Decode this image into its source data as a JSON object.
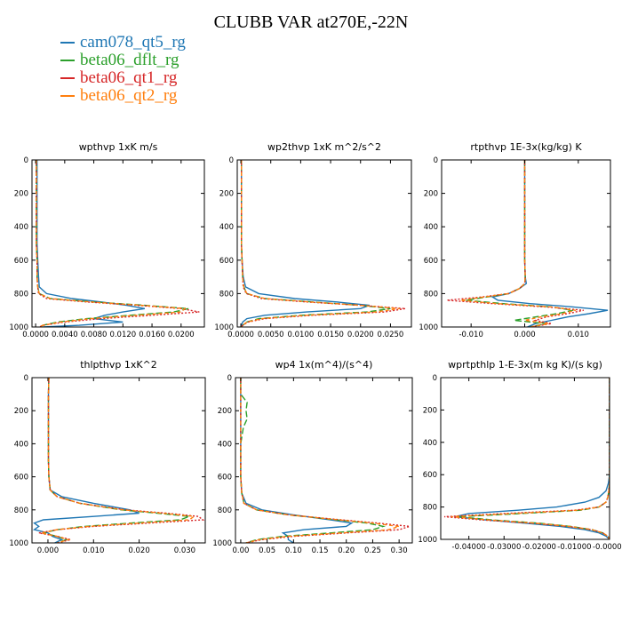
{
  "title": "CLUBB VAR at270E,-22N",
  "colors": {
    "cam078_qt5_rg": "#1f77b4",
    "beta06_dflt_rg": "#2ca02c",
    "beta06_qt1_rg": "#d62728",
    "beta06_qt2_rg": "#ff7f0e"
  },
  "legend": [
    {
      "name": "cam078_qt5_rg",
      "color": "#1f77b4",
      "dash": "solid"
    },
    {
      "name": "beta06_dflt_rg",
      "color": "#2ca02c",
      "dash": "long-dash"
    },
    {
      "name": "beta06_qt1_rg",
      "color": "#d62728",
      "dash": "dotted"
    },
    {
      "name": "beta06_qt2_rg",
      "color": "#ff7f0e",
      "dash": "short-dash"
    }
  ],
  "chart_data": [
    {
      "type": "line",
      "title": "wpthvp   1xK m/s",
      "xlim": [
        -0.0005,
        0.0232
      ],
      "ylim": [
        1000,
        0
      ],
      "xticks": [
        0,
        0.004,
        0.008,
        0.012,
        0.016,
        0.02
      ],
      "xticklabels": [
        "0.0000",
        "0.0040",
        "0.0080",
        "0.0120",
        "0.0160",
        "0.0200"
      ],
      "yticks": [
        0,
        200,
        400,
        600,
        800,
        1000
      ],
      "yticklabels": [
        "0",
        "200",
        "400",
        "600",
        "800",
        "1000"
      ],
      "y": [
        0,
        100,
        200,
        300,
        400,
        500,
        600,
        700,
        760,
        800,
        830,
        850,
        870,
        890,
        910,
        930,
        950,
        970,
        990,
        1000
      ],
      "series": [
        {
          "name": "cam078_qt5_rg",
          "x": [
            0.0002,
            0.0002,
            0.0002,
            0.0002,
            0.0002,
            0.0002,
            0.0003,
            0.0004,
            0.0005,
            0.0015,
            0.005,
            0.009,
            0.0125,
            0.015,
            0.012,
            0.0095,
            0.008,
            0.012,
            0.006,
            0.001
          ]
        },
        {
          "name": "beta06_dflt_rg",
          "x": [
            0.0001,
            0.0001,
            0.0001,
            0.0001,
            0.0001,
            0.0001,
            0.0002,
            0.0002,
            0.0003,
            0.0005,
            0.002,
            0.008,
            0.015,
            0.021,
            0.019,
            0.013,
            0.007,
            0.003,
            0.001,
            0.0005
          ]
        },
        {
          "name": "beta06_qt1_rg",
          "x": [
            0.0001,
            0.0001,
            0.0001,
            0.0001,
            0.0001,
            0.0001,
            0.0002,
            0.0002,
            0.0003,
            0.0004,
            0.0015,
            0.007,
            0.014,
            0.02,
            0.0225,
            0.016,
            0.009,
            0.004,
            0.001,
            0.0005
          ]
        },
        {
          "name": "beta06_qt2_rg",
          "x": [
            0.0001,
            0.0001,
            0.0001,
            0.0001,
            0.0001,
            0.0001,
            0.0002,
            0.0002,
            0.0003,
            0.0005,
            0.002,
            0.0075,
            0.0145,
            0.0205,
            0.02,
            0.014,
            0.0075,
            0.0035,
            0.001,
            0.0005
          ]
        }
      ]
    },
    {
      "type": "line",
      "title": "wp2thvp   1xK m^2/s^2",
      "xlim": [
        -0.0006,
        0.0285
      ],
      "ylim": [
        1000,
        0
      ],
      "xticks": [
        0,
        0.005,
        0.01,
        0.015,
        0.02,
        0.025
      ],
      "xticklabels": [
        "0.0000",
        "0.0050",
        "0.0100",
        "0.0150",
        "0.0200",
        "0.0250"
      ],
      "yticks": [
        0,
        200,
        400,
        600,
        800,
        1000
      ],
      "yticklabels": [
        "0",
        "200",
        "400",
        "600",
        "800",
        "1000"
      ],
      "y": [
        0,
        100,
        200,
        300,
        400,
        500,
        600,
        700,
        760,
        800,
        830,
        850,
        870,
        890,
        910,
        930,
        950,
        970,
        990,
        1000
      ],
      "series": [
        {
          "name": "cam078_qt5_rg",
          "x": [
            0.0001,
            0.0001,
            0.0001,
            0.0001,
            0.0001,
            0.0001,
            0.0002,
            0.0004,
            0.0008,
            0.003,
            0.009,
            0.016,
            0.0215,
            0.02,
            0.011,
            0.004,
            0.001,
            0.0003,
            0.0001,
            0.0001
          ]
        },
        {
          "name": "beta06_dflt_rg",
          "x": [
            0.0001,
            0.0001,
            0.0001,
            0.0001,
            0.0001,
            0.0001,
            0.0002,
            0.0003,
            0.0005,
            0.001,
            0.004,
            0.012,
            0.02,
            0.025,
            0.021,
            0.01,
            0.003,
            0.001,
            0.0003,
            0.0001
          ]
        },
        {
          "name": "beta06_qt1_rg",
          "x": [
            0.0001,
            0.0001,
            0.0001,
            0.0001,
            0.0001,
            0.0001,
            0.0002,
            0.0003,
            0.0004,
            0.0009,
            0.0035,
            0.011,
            0.02,
            0.0275,
            0.024,
            0.012,
            0.004,
            0.0012,
            0.0003,
            0.0001
          ]
        },
        {
          "name": "beta06_qt2_rg",
          "x": [
            0.0001,
            0.0001,
            0.0001,
            0.0001,
            0.0001,
            0.0001,
            0.0002,
            0.0003,
            0.0005,
            0.001,
            0.004,
            0.0115,
            0.02,
            0.0265,
            0.0225,
            0.011,
            0.0035,
            0.001,
            0.0003,
            0.0001
          ]
        }
      ]
    },
    {
      "type": "line",
      "title": "rtpthvp   1E-3x(kg/kg) K",
      "xlim": [
        -0.0155,
        0.016
      ],
      "ylim": [
        1000,
        0
      ],
      "xticks": [
        -0.01,
        0,
        0.01
      ],
      "xticklabels": [
        "-0.010",
        "0.000",
        "0.010"
      ],
      "yticks": [
        0,
        200,
        400,
        600,
        800,
        1000
      ],
      "yticklabels": [
        "0",
        "200",
        "400",
        "600",
        "800",
        "1000"
      ],
      "y": [
        0,
        100,
        200,
        300,
        400,
        500,
        600,
        700,
        740,
        770,
        800,
        820,
        840,
        860,
        880,
        900,
        920,
        940,
        960,
        980,
        1000
      ],
      "series": [
        {
          "name": "cam078_qt5_rg",
          "x": [
            0.0,
            0.0,
            0.0,
            0.0,
            0.0,
            0.0,
            0.0,
            0.0001,
            0.0003,
            -0.001,
            -0.003,
            -0.006,
            -0.005,
            0.001,
            0.009,
            0.0155,
            0.012,
            0.008,
            0.005,
            0.002,
            0.0005
          ]
        },
        {
          "name": "beta06_dflt_rg",
          "x": [
            0.0,
            0.0,
            0.0,
            0.0,
            0.0,
            0.0,
            0.0,
            0.0001,
            0.0,
            -0.001,
            -0.003,
            -0.007,
            -0.011,
            -0.004,
            0.005,
            0.009,
            0.006,
            0.002,
            -0.002,
            0.004,
            0.001
          ]
        },
        {
          "name": "beta06_qt1_rg",
          "x": [
            0.0,
            0.0,
            0.0,
            0.0,
            0.0,
            0.0,
            0.0,
            0.0001,
            0.0,
            -0.001,
            -0.003,
            -0.008,
            -0.0145,
            -0.006,
            0.004,
            0.011,
            0.008,
            0.004,
            0.002,
            0.005,
            0.001
          ]
        },
        {
          "name": "beta06_qt2_rg",
          "x": [
            0.0,
            0.0,
            0.0,
            0.0,
            0.0,
            0.0,
            0.0,
            0.0001,
            0.0,
            -0.001,
            -0.003,
            -0.0075,
            -0.012,
            -0.005,
            0.005,
            0.0095,
            0.007,
            0.003,
            0.0,
            0.0045,
            0.001
          ]
        }
      ]
    },
    {
      "type": "line",
      "title": "thlpthvp   1xK^2",
      "xlim": [
        -0.0035,
        0.0345
      ],
      "ylim": [
        1000,
        0
      ],
      "xticks": [
        0,
        0.01,
        0.02,
        0.03
      ],
      "xticklabels": [
        "0.000",
        "0.010",
        "0.020",
        "0.030"
      ],
      "yticks": [
        0,
        200,
        400,
        600,
        800,
        1000
      ],
      "yticklabels": [
        "0",
        "200",
        "400",
        "600",
        "800",
        "1000"
      ],
      "y": [
        0,
        100,
        200,
        300,
        400,
        500,
        600,
        680,
        720,
        760,
        800,
        820,
        840,
        860,
        880,
        900,
        920,
        940,
        960,
        980,
        1000
      ],
      "series": [
        {
          "name": "cam078_qt5_rg",
          "x": [
            0.0002,
            0.0001,
            0.0001,
            0.0001,
            0.0001,
            0.0001,
            0.0002,
            0.0005,
            0.003,
            0.01,
            0.018,
            0.02,
            0.01,
            -0.001,
            -0.003,
            -0.002,
            -0.003,
            0.0,
            0.001,
            0.003,
            0.0015
          ]
        },
        {
          "name": "beta06_dflt_rg",
          "x": [
            0.0002,
            0.0001,
            0.0001,
            0.0001,
            0.0001,
            0.0001,
            0.0002,
            0.0005,
            0.002,
            0.007,
            0.016,
            0.024,
            0.031,
            0.029,
            0.018,
            0.008,
            0.002,
            -0.001,
            0.002,
            0.004,
            0.002
          ]
        },
        {
          "name": "beta06_qt1_rg",
          "x": [
            0.0002,
            0.0001,
            0.0001,
            0.0001,
            0.0001,
            0.0001,
            0.0002,
            0.0005,
            0.002,
            0.007,
            0.017,
            0.026,
            0.033,
            0.034,
            0.022,
            0.01,
            0.002,
            -0.002,
            0.002,
            0.005,
            0.002
          ]
        },
        {
          "name": "beta06_qt2_rg",
          "x": [
            0.0002,
            0.0001,
            0.0001,
            0.0001,
            0.0001,
            0.0001,
            0.0002,
            0.0005,
            0.002,
            0.007,
            0.0165,
            0.025,
            0.032,
            0.031,
            0.02,
            0.009,
            0.002,
            -0.0015,
            0.002,
            0.0045,
            0.002
          ]
        }
      ]
    },
    {
      "type": "line",
      "title": "wp4   1x(m^4)/(s^4)",
      "xlim": [
        -0.01,
        0.325
      ],
      "ylim": [
        1000,
        0
      ],
      "xticks": [
        0,
        0.05,
        0.1,
        0.15,
        0.2,
        0.25,
        0.3
      ],
      "xticklabels": [
        "0.00",
        "0.05",
        "0.10",
        "0.15",
        "0.20",
        "0.25",
        "0.30"
      ],
      "yticks": [
        0,
        200,
        400,
        600,
        800,
        1000
      ],
      "yticklabels": [
        "0",
        "200",
        "400",
        "600",
        "800",
        "1000"
      ],
      "y": [
        0,
        100,
        150,
        200,
        250,
        300,
        400,
        500,
        600,
        700,
        760,
        800,
        830,
        860,
        880,
        900,
        920,
        940,
        960,
        980,
        1000
      ],
      "series": [
        {
          "name": "cam078_qt5_rg",
          "x": [
            0.0,
            0.0,
            0.0,
            0.0,
            0.0,
            0.0,
            0.0,
            0.0,
            0.0,
            0.002,
            0.01,
            0.04,
            0.1,
            0.17,
            0.21,
            0.2,
            0.12,
            0.08,
            0.09,
            0.09,
            0.1
          ]
        },
        {
          "name": "beta06_dflt_rg",
          "x": [
            0.0,
            0.0,
            0.012,
            0.01,
            0.012,
            0.005,
            0.0,
            0.0,
            0.0,
            0.002,
            0.006,
            0.03,
            0.09,
            0.18,
            0.24,
            0.27,
            0.25,
            0.17,
            0.08,
            0.03,
            0.01
          ]
        },
        {
          "name": "beta06_qt1_rg",
          "x": [
            0.0,
            0.0,
            0.0,
            0.0,
            0.0,
            0.0,
            0.0,
            0.0,
            0.0,
            0.002,
            0.006,
            0.03,
            0.09,
            0.19,
            0.26,
            0.32,
            0.3,
            0.2,
            0.1,
            0.04,
            0.01
          ]
        },
        {
          "name": "beta06_qt2_rg",
          "x": [
            0.0,
            0.0,
            0.0,
            0.0,
            0.0,
            0.0,
            0.0,
            0.0,
            0.0,
            0.002,
            0.006,
            0.03,
            0.09,
            0.185,
            0.25,
            0.3,
            0.28,
            0.19,
            0.09,
            0.035,
            0.01
          ]
        }
      ]
    },
    {
      "type": "line",
      "title": "wprtpthlp   1-E-3x(m kg K)/(s kg)",
      "xlim": [
        -0.048,
        0.0
      ],
      "ylim": [
        1000,
        0
      ],
      "xticks": [
        -0.04,
        -0.03,
        -0.02,
        -0.01,
        0.0
      ],
      "xticklabels": [
        "-0.04000",
        "-0.03000",
        "-0.02000",
        "-0.01000",
        "-0.00000"
      ],
      "yticks": [
        0,
        200,
        400,
        600,
        800,
        1000
      ],
      "yticklabels": [
        "0",
        "200",
        "400",
        "600",
        "800",
        "1000"
      ],
      "y": [
        0,
        100,
        200,
        300,
        400,
        500,
        600,
        650,
        700,
        740,
        770,
        800,
        820,
        840,
        860,
        880,
        900,
        920,
        940,
        960,
        980,
        1000
      ],
      "series": [
        {
          "name": "cam078_qt5_rg",
          "x": [
            0.0,
            0.0,
            0.0,
            0.0,
            0.0,
            0.0,
            0.0,
            -0.0003,
            -0.001,
            -0.003,
            -0.007,
            -0.015,
            -0.026,
            -0.04,
            -0.044,
            -0.035,
            -0.024,
            -0.014,
            -0.007,
            -0.003,
            -0.001,
            0.0
          ]
        },
        {
          "name": "beta06_dflt_rg",
          "x": [
            0.0,
            0.0,
            0.0,
            0.0,
            0.0,
            0.0,
            0.0,
            0.0,
            -0.0002,
            -0.0005,
            -0.001,
            -0.003,
            -0.008,
            -0.025,
            -0.043,
            -0.033,
            -0.02,
            -0.011,
            -0.005,
            -0.002,
            -0.0005,
            0.0
          ]
        },
        {
          "name": "beta06_qt1_rg",
          "x": [
            0.0,
            0.0,
            0.0,
            0.0,
            0.0,
            0.0,
            0.0,
            0.0,
            -0.0002,
            -0.0005,
            -0.001,
            -0.003,
            -0.01,
            -0.03,
            -0.047,
            -0.036,
            -0.022,
            -0.012,
            -0.005,
            -0.002,
            -0.0005,
            0.0
          ]
        },
        {
          "name": "beta06_qt2_rg",
          "x": [
            0.0,
            0.0,
            0.0,
            0.0,
            0.0,
            0.0,
            0.0,
            0.0,
            -0.0002,
            -0.0005,
            -0.001,
            -0.003,
            -0.009,
            -0.027,
            -0.045,
            -0.034,
            -0.021,
            -0.0115,
            -0.005,
            -0.002,
            -0.0005,
            0.0
          ]
        }
      ]
    }
  ]
}
